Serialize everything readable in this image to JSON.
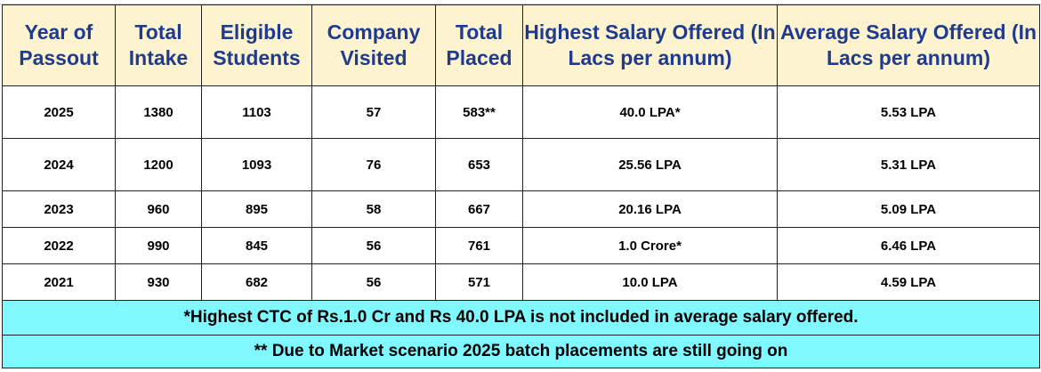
{
  "table": {
    "headers": [
      "Year of Passout",
      "Total Intake",
      "Eligible Students",
      "Company Visited",
      "Total Placed",
      "Highest Salary Offered (In Lacs per annum)",
      "Average Salary Offered (In Lacs per annum)"
    ],
    "rows": [
      [
        "2025",
        "1380",
        "1103",
        "57",
        "583**",
        "40.0 LPA*",
        "5.53 LPA"
      ],
      [
        "2024",
        "1200",
        "1093",
        "76",
        "653",
        "25.56 LPA",
        "5.31 LPA"
      ],
      [
        "2023",
        "960",
        "895",
        "58",
        "667",
        "20.16 LPA",
        "5.09 LPA"
      ],
      [
        "2022",
        "990",
        "845",
        "56",
        "761",
        "1.0 Crore*",
        "6.46 LPA"
      ],
      [
        "2021",
        "930",
        "682",
        "56",
        "571",
        "10.0 LPA",
        "4.59 LPA"
      ]
    ],
    "notes": [
      "*Highest CTC of Rs.1.0 Cr and Rs 40.0 LPA is not included in average salary offered.",
      "** Due to Market scenario 2025 batch placements are still going on"
    ]
  },
  "colors": {
    "header_bg": "#fdf3cf",
    "header_text": "#1f3b8f",
    "note_bg": "#80f8ff"
  }
}
